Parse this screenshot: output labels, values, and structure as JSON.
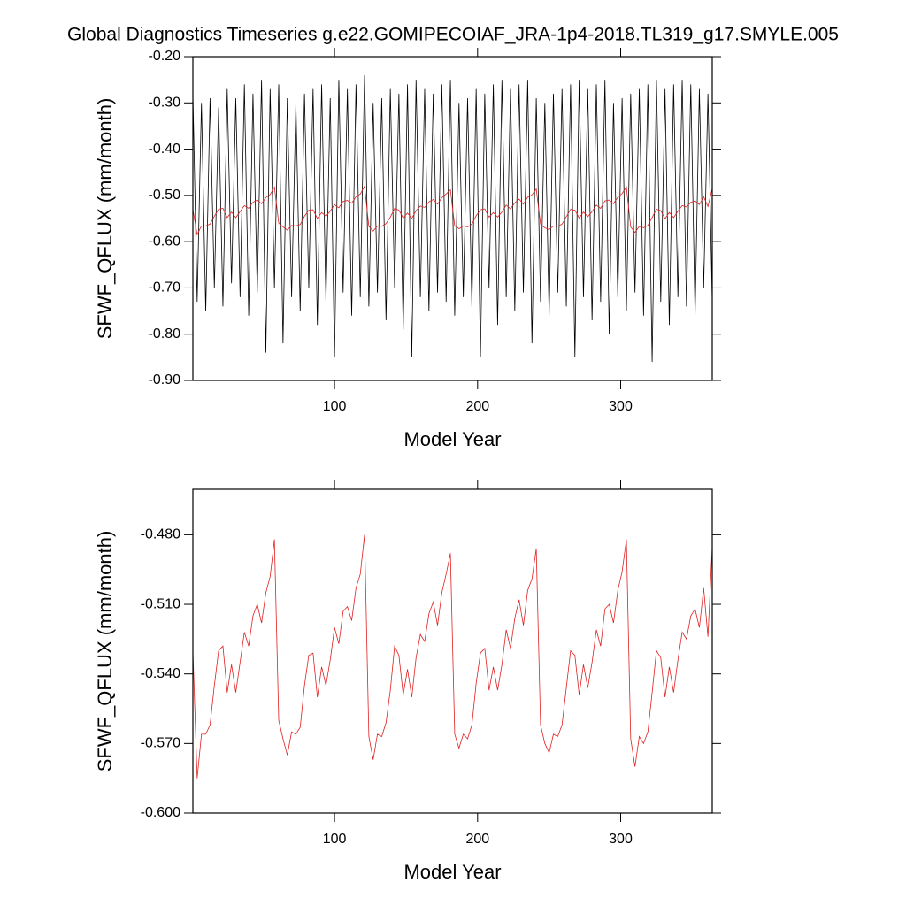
{
  "chart_data": [
    {
      "type": "line",
      "title": "Global Diagnostics Timeseries g.e22.GOMIPECOIAF_JRA-1p4-2018.TL319_g17.SMYLE.005",
      "xlabel": "Model Year",
      "ylabel": "SFWF_QFLUX (mm/month)",
      "xlim": [
        1,
        364
      ],
      "ylim": [
        -0.9,
        -0.2
      ],
      "xticks": [
        100,
        200,
        300
      ],
      "yticks": [
        {
          "value": -0.9,
          "label": "-0.90"
        },
        {
          "value": -0.8,
          "label": "-0.80"
        },
        {
          "value": -0.7,
          "label": "-0.70"
        },
        {
          "value": -0.6,
          "label": "-0.60"
        },
        {
          "value": -0.5,
          "label": "-0.50"
        },
        {
          "value": -0.4,
          "label": "-0.40"
        },
        {
          "value": -0.3,
          "label": "-0.30"
        },
        {
          "value": -0.2,
          "label": "-0.20"
        }
      ],
      "x": [
        1,
        4,
        7,
        10,
        13,
        16,
        19,
        22,
        25,
        28,
        31,
        34,
        37,
        40,
        43,
        46,
        49,
        52,
        55,
        58,
        61,
        64,
        67,
        70,
        73,
        76,
        79,
        82,
        85,
        88,
        91,
        94,
        97,
        100,
        103,
        106,
        109,
        112,
        115,
        118,
        121,
        124,
        127,
        130,
        133,
        136,
        139,
        142,
        145,
        148,
        151,
        154,
        157,
        160,
        163,
        166,
        169,
        172,
        175,
        178,
        181,
        184,
        187,
        190,
        193,
        196,
        199,
        202,
        205,
        208,
        211,
        214,
        217,
        220,
        223,
        226,
        229,
        232,
        235,
        238,
        241,
        244,
        247,
        250,
        253,
        256,
        259,
        262,
        265,
        268,
        271,
        274,
        277,
        280,
        283,
        286,
        289,
        292,
        295,
        298,
        301,
        304,
        307,
        310,
        313,
        316,
        319,
        322,
        325,
        328,
        331,
        334,
        337,
        340,
        343,
        346,
        349,
        352,
        355,
        358,
        361,
        364
      ],
      "series": [
        {
          "color": "#000000",
          "values": [
            -0.28,
            -0.73,
            -0.3,
            -0.75,
            -0.29,
            -0.7,
            -0.31,
            -0.74,
            -0.27,
            -0.69,
            -0.29,
            -0.72,
            -0.26,
            -0.76,
            -0.28,
            -0.71,
            -0.25,
            -0.84,
            -0.27,
            -0.7,
            -0.26,
            -0.82,
            -0.29,
            -0.72,
            -0.3,
            -0.75,
            -0.28,
            -0.7,
            -0.27,
            -0.78,
            -0.26,
            -0.73,
            -0.29,
            -0.85,
            -0.25,
            -0.71,
            -0.27,
            -0.76,
            -0.26,
            -0.72,
            -0.24,
            -0.74,
            -0.3,
            -0.71,
            -0.29,
            -0.77,
            -0.27,
            -0.7,
            -0.28,
            -0.79,
            -0.26,
            -0.85,
            -0.25,
            -0.72,
            -0.27,
            -0.75,
            -0.28,
            -0.71,
            -0.26,
            -0.73,
            -0.25,
            -0.76,
            -0.3,
            -0.72,
            -0.29,
            -0.74,
            -0.27,
            -0.85,
            -0.28,
            -0.7,
            -0.26,
            -0.78,
            -0.25,
            -0.72,
            -0.27,
            -0.75,
            -0.26,
            -0.71,
            -0.25,
            -0.82,
            -0.29,
            -0.73,
            -0.3,
            -0.76,
            -0.28,
            -0.71,
            -0.27,
            -0.74,
            -0.26,
            -0.85,
            -0.25,
            -0.72,
            -0.27,
            -0.77,
            -0.26,
            -0.73,
            -0.25,
            -0.8,
            -0.3,
            -0.72,
            -0.29,
            -0.75,
            -0.28,
            -0.71,
            -0.27,
            -0.76,
            -0.26,
            -0.86,
            -0.25,
            -0.73,
            -0.27,
            -0.78,
            -0.26,
            -0.72,
            -0.25,
            -0.74,
            -0.26,
            -0.76,
            -0.27,
            -0.7,
            -0.28,
            -0.73
          ]
        },
        {
          "color": "#e02020",
          "values": [
            -0.53,
            -0.585,
            -0.566,
            -0.566,
            -0.562,
            -0.545,
            -0.53,
            -0.528,
            -0.548,
            -0.536,
            -0.548,
            -0.535,
            -0.522,
            -0.528,
            -0.515,
            -0.51,
            -0.518,
            -0.505,
            -0.498,
            -0.482,
            -0.56,
            -0.568,
            -0.575,
            -0.565,
            -0.566,
            -0.563,
            -0.545,
            -0.532,
            -0.531,
            -0.55,
            -0.537,
            -0.545,
            -0.534,
            -0.52,
            -0.527,
            -0.513,
            -0.511,
            -0.517,
            -0.503,
            -0.497,
            -0.48,
            -0.567,
            -0.577,
            -0.566,
            -0.567,
            -0.561,
            -0.547,
            -0.528,
            -0.532,
            -0.549,
            -0.538,
            -0.55,
            -0.533,
            -0.523,
            -0.526,
            -0.514,
            -0.509,
            -0.519,
            -0.505,
            -0.497,
            -0.488,
            -0.566,
            -0.572,
            -0.566,
            -0.568,
            -0.562,
            -0.544,
            -0.531,
            -0.529,
            -0.547,
            -0.537,
            -0.547,
            -0.536,
            -0.521,
            -0.529,
            -0.516,
            -0.508,
            -0.519,
            -0.504,
            -0.499,
            -0.486,
            -0.562,
            -0.57,
            -0.574,
            -0.566,
            -0.567,
            -0.562,
            -0.546,
            -0.53,
            -0.532,
            -0.549,
            -0.536,
            -0.546,
            -0.535,
            -0.521,
            -0.528,
            -0.512,
            -0.51,
            -0.518,
            -0.504,
            -0.496,
            -0.482,
            -0.568,
            -0.58,
            -0.567,
            -0.57,
            -0.565,
            -0.548,
            -0.53,
            -0.533,
            -0.55,
            -0.537,
            -0.548,
            -0.534,
            -0.522,
            -0.525,
            -0.515,
            -0.512,
            -0.52,
            -0.503,
            -0.524,
            -0.485
          ]
        }
      ]
    },
    {
      "type": "line",
      "xlabel": "Model Year",
      "ylabel": "SFWF_QFLUX (mm/month)",
      "xlim": [
        1,
        364
      ],
      "ylim": [
        -0.6,
        -0.4604
      ],
      "xticks": [
        100,
        200,
        300
      ],
      "yticks": [
        {
          "value": -0.6,
          "label": "-0.600"
        },
        {
          "value": -0.57,
          "label": "-0.570"
        },
        {
          "value": -0.54,
          "label": "-0.540"
        },
        {
          "value": -0.51,
          "label": "-0.510"
        },
        {
          "value": -0.48,
          "label": "-0.480"
        }
      ],
      "x": [
        1,
        4,
        7,
        10,
        13,
        16,
        19,
        22,
        25,
        28,
        31,
        34,
        37,
        40,
        43,
        46,
        49,
        52,
        55,
        58,
        61,
        64,
        67,
        70,
        73,
        76,
        79,
        82,
        85,
        88,
        91,
        94,
        97,
        100,
        103,
        106,
        109,
        112,
        115,
        118,
        121,
        124,
        127,
        130,
        133,
        136,
        139,
        142,
        145,
        148,
        151,
        154,
        157,
        160,
        163,
        166,
        169,
        172,
        175,
        178,
        181,
        184,
        187,
        190,
        193,
        196,
        199,
        202,
        205,
        208,
        211,
        214,
        217,
        220,
        223,
        226,
        229,
        232,
        235,
        238,
        241,
        244,
        247,
        250,
        253,
        256,
        259,
        262,
        265,
        268,
        271,
        274,
        277,
        280,
        283,
        286,
        289,
        292,
        295,
        298,
        301,
        304,
        307,
        310,
        313,
        316,
        319,
        322,
        325,
        328,
        331,
        334,
        337,
        340,
        343,
        346,
        349,
        352,
        355,
        358,
        361,
        364
      ],
      "series": [
        {
          "color": "#e02020",
          "values": [
            -0.53,
            -0.585,
            -0.566,
            -0.566,
            -0.562,
            -0.545,
            -0.53,
            -0.528,
            -0.548,
            -0.536,
            -0.548,
            -0.535,
            -0.522,
            -0.528,
            -0.515,
            -0.51,
            -0.518,
            -0.505,
            -0.498,
            -0.482,
            -0.56,
            -0.568,
            -0.575,
            -0.565,
            -0.566,
            -0.563,
            -0.545,
            -0.532,
            -0.531,
            -0.55,
            -0.537,
            -0.545,
            -0.534,
            -0.52,
            -0.527,
            -0.513,
            -0.511,
            -0.517,
            -0.503,
            -0.497,
            -0.48,
            -0.567,
            -0.577,
            -0.566,
            -0.567,
            -0.561,
            -0.547,
            -0.528,
            -0.532,
            -0.549,
            -0.538,
            -0.55,
            -0.533,
            -0.523,
            -0.526,
            -0.514,
            -0.509,
            -0.519,
            -0.505,
            -0.497,
            -0.488,
            -0.566,
            -0.572,
            -0.566,
            -0.568,
            -0.562,
            -0.544,
            -0.531,
            -0.529,
            -0.547,
            -0.537,
            -0.547,
            -0.536,
            -0.521,
            -0.529,
            -0.516,
            -0.508,
            -0.519,
            -0.504,
            -0.499,
            -0.486,
            -0.562,
            -0.57,
            -0.574,
            -0.566,
            -0.567,
            -0.562,
            -0.546,
            -0.53,
            -0.532,
            -0.549,
            -0.536,
            -0.546,
            -0.535,
            -0.521,
            -0.528,
            -0.512,
            -0.51,
            -0.518,
            -0.504,
            -0.496,
            -0.482,
            -0.568,
            -0.58,
            -0.567,
            -0.57,
            -0.565,
            -0.548,
            -0.53,
            -0.533,
            -0.55,
            -0.537,
            -0.548,
            -0.534,
            -0.522,
            -0.525,
            -0.515,
            -0.512,
            -0.52,
            -0.503,
            -0.524,
            -0.485
          ]
        }
      ]
    }
  ]
}
